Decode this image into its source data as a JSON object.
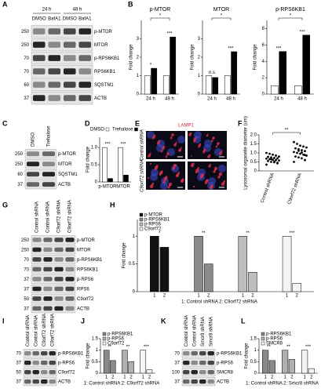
{
  "panels": {
    "A": {
      "letter": "A",
      "groups": [
        "24 h",
        "48 h"
      ],
      "lanes": [
        "DMSO",
        "BafA1",
        "DMSO",
        "BafA1"
      ],
      "rows": [
        {
          "marker": 250,
          "protein": "p-MTOR"
        },
        {
          "marker": 250,
          "protein": "MTOR"
        },
        {
          "marker": 70,
          "protein": "p-RPS6KB1"
        },
        {
          "marker": 70,
          "protein": "RPS6KB1"
        },
        {
          "marker": 60,
          "protein": "SQSTM1"
        },
        {
          "marker": 37,
          "protein": "ACTB"
        }
      ]
    },
    "C": {
      "letter": "C",
      "lanes": [
        "DMSO",
        "Trehalose"
      ],
      "rows": [
        {
          "marker": 250,
          "protein": "p-MTOR"
        },
        {
          "marker": 250,
          "protein": "MTOR"
        },
        {
          "marker": 60,
          "protein": "SQSTM1"
        },
        {
          "marker": 37,
          "protein": "ACTB"
        }
      ]
    },
    "E": {
      "letter": "E",
      "stain": "LAMP1",
      "rows": [
        "Control shRNA",
        "C9orf72 shRNA"
      ]
    },
    "G": {
      "letter": "G",
      "lanes": [
        "Control shRNA",
        "Control shRNA",
        "C9orf72 shRNA",
        "C9orf72 shRNA"
      ],
      "rows": [
        {
          "marker": 250,
          "protein": "p-MTOR"
        },
        {
          "marker": 250,
          "protein": "MTOR"
        },
        {
          "marker": 70,
          "protein": "p-RPS6KB1"
        },
        {
          "marker": 70,
          "protein": "RPS6KB1"
        },
        {
          "marker": 37,
          "protein": "p-RPS6"
        },
        {
          "marker": 37,
          "protein": "RPS6"
        },
        {
          "marker": 50,
          "protein": "C9orf72"
        },
        {
          "marker": 37,
          "protein": "ACTB"
        }
      ]
    },
    "I": {
      "letter": "I",
      "lanes": [
        "Control shRNA",
        "Control shRNA",
        "C9orf72 shRNA",
        "C9orf72 shRNA"
      ],
      "rows": [
        {
          "marker": 70,
          "protein": "p-RPS6KB1"
        },
        {
          "marker": 37,
          "protein": "p-RPS6"
        },
        {
          "marker": 50,
          "protein": "C9orf72"
        },
        {
          "marker": 37,
          "protein": "ACTB"
        }
      ]
    },
    "K": {
      "letter": "K",
      "lanes": [
        "Control shRNA",
        "Control shRNA",
        "Smcr8 shRNA",
        "Smcr8 shRNA"
      ],
      "rows": [
        {
          "marker": 70,
          "protein": "p-RPS6KB1"
        },
        {
          "marker": 37,
          "protein": "p-RPS6"
        },
        {
          "marker": 100,
          "protein": "SMCR8"
        },
        {
          "marker": 37,
          "protein": "ACTB"
        }
      ]
    }
  },
  "chart_data": [
    {
      "type": "bar",
      "panel": "B",
      "title": "p-MTOR",
      "ylabel": "Fold change",
      "categories": [
        "24 h",
        "48 h"
      ],
      "series": [
        {
          "color": "#ffffff",
          "values": [
            1,
            1
          ]
        },
        {
          "color": "#000000",
          "values": [
            1.4,
            3.1
          ]
        }
      ],
      "ylim": [
        0,
        4
      ],
      "yticks": [
        0,
        1,
        2,
        3
      ],
      "annotations": [
        "*",
        "***"
      ],
      "bracket": "*"
    },
    {
      "type": "bar",
      "title": "MTOR",
      "ylabel": "Fold change",
      "categories": [
        "24 h",
        "48 h"
      ],
      "series": [
        {
          "color": "#ffffff",
          "values": [
            1,
            1
          ]
        },
        {
          "color": "#000000",
          "values": [
            0.9,
            2.3
          ]
        }
      ],
      "ylim": [
        0,
        4
      ],
      "yticks": [
        0,
        1,
        2,
        3
      ],
      "annotations": [
        "n.s",
        "***"
      ],
      "bracket": "*"
    },
    {
      "type": "bar",
      "title": "p-RPS6KB1",
      "ylabel": "Fold change",
      "categories": [
        "24 h",
        "48 h"
      ],
      "series": [
        {
          "color": "#ffffff",
          "values": [
            1,
            1
          ]
        },
        {
          "color": "#000000",
          "values": [
            5.2,
            7.2
          ]
        }
      ],
      "ylim": [
        0,
        9
      ],
      "yticks": [
        0,
        2,
        4,
        6,
        8
      ],
      "annotations": [
        "***",
        "***"
      ],
      "bracket": "*"
    },
    {
      "type": "bar",
      "panel": "D",
      "ylabel": "Fold change",
      "categories": [
        "p-MTOR",
        "MTOR"
      ],
      "series": [
        {
          "name": "DMSO",
          "color": "#ffffff",
          "values": [
            1,
            1
          ]
        },
        {
          "name": "Trehalose",
          "color": "#000000",
          "values": [
            0.1,
            0.2
          ]
        }
      ],
      "ylim": [
        0,
        1.3
      ],
      "yticks": [
        0,
        0.5,
        {
          "value": 1,
          "label": "1.0"
        }
      ],
      "legend": "top",
      "annotations": [
        "***",
        "***"
      ]
    },
    {
      "type": "strip",
      "panel": "F",
      "ylabel": "Lysosomal organelle diameter (um)",
      "categories": [
        "Control shRNA",
        "C9orf72 shRNA"
      ],
      "series": [
        {
          "color": "#000000",
          "values": [
            0.35,
            0.42,
            0.48,
            0.5,
            0.55,
            0.58,
            0.6,
            0.62,
            0.65,
            0.68,
            0.7,
            0.72,
            0.75,
            0.78,
            0.8,
            0.85,
            0.9,
            0.95,
            1.0,
            0.45,
            0.52,
            0.66
          ]
        },
        {
          "color": "#000000",
          "values": [
            0.5,
            0.6,
            0.7,
            0.75,
            0.8,
            0.85,
            0.9,
            0.95,
            1.0,
            1.05,
            1.1,
            1.15,
            1.2,
            1.25,
            1.3,
            1.35,
            1.4,
            1.5,
            1.6,
            0.88,
            1.02,
            1.12
          ]
        }
      ],
      "ylim": [
        0,
        2
      ],
      "yticks": [
        0,
        0.5,
        {
          "value": 1,
          "label": "1.0"
        },
        1.5,
        {
          "value": 2,
          "label": "2.0"
        }
      ],
      "bracket": "**"
    },
    {
      "type": "bar",
      "panel": "H",
      "ylabel": "Fold change",
      "group_by": "series",
      "categories": [
        "1",
        "2"
      ],
      "series": [
        {
          "name": "p-MTOR",
          "color": "#111111",
          "values": [
            1,
            0.8
          ]
        },
        {
          "name": "p-RPS6KB1",
          "color": "#8a8a8a",
          "values": [
            1,
            0.5
          ]
        },
        {
          "name": "p-RPS6",
          "color": "#bdbdbd",
          "values": [
            1,
            0.35
          ]
        },
        {
          "name": "C9orf72",
          "color": "#f4f4f4",
          "values": [
            1,
            0.15
          ]
        }
      ],
      "ylim": [
        0,
        1.3
      ],
      "yticks": [
        0,
        0.5,
        1
      ],
      "legend": "top-left",
      "annotations": [
        "*",
        "**",
        "**",
        "***"
      ],
      "caption": "1: Control shRNA 2: C9orf72 shRNA"
    },
    {
      "type": "bar",
      "panel": "J",
      "ylabel": "Fold change",
      "group_by": "series",
      "categories": [
        "1",
        "2"
      ],
      "series": [
        {
          "name": "p-RPS6KB1",
          "color": "#8a8a8a",
          "values": [
            1,
            0.55
          ]
        },
        {
          "name": "p-RPS6",
          "color": "#b0b0b0",
          "values": [
            1,
            0.5
          ]
        },
        {
          "name": "C9orf72",
          "color": "#f4f4f4",
          "values": [
            1,
            0.15
          ]
        }
      ],
      "ylim": [
        0,
        1.5
      ],
      "yticks": [
        0,
        0.5,
        1,
        1.5
      ],
      "legend": "top-left",
      "annotations": [
        "**",
        "**",
        "***"
      ],
      "caption": "1: Control shRNA 2: C9orf72 shRNA"
    },
    {
      "type": "bar",
      "panel": "L",
      "ylabel": "Fold change",
      "group_by": "series",
      "categories": [
        "1",
        "2"
      ],
      "series": [
        {
          "name": "p-RPS6KB1",
          "color": "#8a8a8a",
          "values": [
            1,
            0.55
          ]
        },
        {
          "name": "p-RPS6",
          "color": "#b0b0b0",
          "values": [
            1,
            0.6
          ]
        },
        {
          "name": "SMCR8",
          "color": "#f4f4f4",
          "values": [
            1,
            0.2
          ]
        }
      ],
      "ylim": [
        0,
        1.5
      ],
      "yticks": [
        0,
        0.5,
        1,
        1.5
      ],
      "legend": "top-left",
      "annotations": [
        "**",
        "**",
        "***"
      ],
      "caption": "1: Control shRNA 2: Smcr8 shRNA"
    }
  ]
}
